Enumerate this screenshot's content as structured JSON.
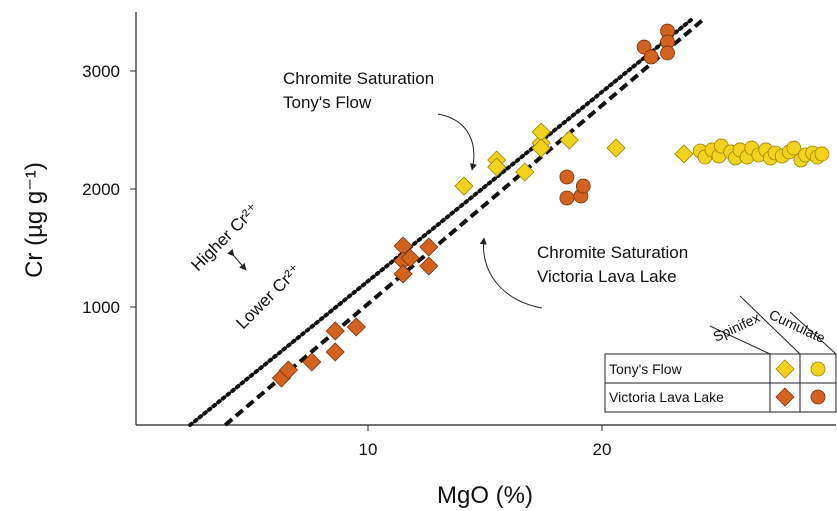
{
  "chart_data": {
    "type": "scatter",
    "xlabel": "MgO (%)",
    "ylabel": "Cr (µg g⁻¹)",
    "xlim": [
      0,
      30
    ],
    "ylim": [
      0,
      3500
    ],
    "xticks": [
      10,
      20
    ],
    "yticks": [
      1000,
      2000,
      3000
    ],
    "groups": [
      {
        "name": "Tony's Flow",
        "color": "#f2d21c",
        "stroke": "#9c8500",
        "series": [
          {
            "name": "Spinifex",
            "marker": "diamond",
            "x": [
              14.1,
              15.5,
              15.5,
              16.7,
              17.4,
              17.4,
              17.4,
              18.6,
              20.6,
              23.5
            ],
            "y": [
              2025,
              2246,
              2186,
              2144,
              2390,
              2483,
              2347,
              2415,
              2347,
              2297
            ]
          },
          {
            "name": "Cumulate",
            "marker": "circle",
            "x": [
              24.2,
              24.4,
              24.7,
              25.0,
              25.1,
              25.5,
              25.7,
              25.9,
              26.2,
              26.4,
              26.7,
              27.0,
              27.2,
              27.4,
              27.7,
              28.0,
              28.2,
              28.5,
              28.7,
              29.0,
              29.2,
              29.4
            ],
            "y": [
              2322,
              2271,
              2331,
              2280,
              2364,
              2314,
              2263,
              2331,
              2271,
              2347,
              2288,
              2331,
              2263,
              2305,
              2280,
              2314,
              2347,
              2246,
              2288,
              2305,
              2271,
              2297
            ]
          }
        ]
      },
      {
        "name": "Victoria Lava Lake",
        "color": "#d4621f",
        "stroke": "#7e3310",
        "series": [
          {
            "name": "Spinifex",
            "marker": "diamond",
            "x": [
              6.3,
              6.6,
              7.6,
              8.6,
              8.6,
              9.5,
              11.5,
              11.5,
              11.5,
              11.8,
              12.6,
              12.6
            ],
            "y": [
              398,
              466,
              534,
              619,
              797,
              831,
              1517,
              1390,
              1280,
              1415,
              1508,
              1347
            ]
          },
          {
            "name": "Cumulate",
            "marker": "circle",
            "x": [
              18.5,
              18.5,
              19.1,
              19.2,
              21.8,
              22.1,
              22.8,
              22.8,
              22.8
            ],
            "y": [
              2102,
              1924,
              1941,
              2025,
              3203,
              3119,
              3339,
              3246,
              3153
            ]
          }
        ]
      }
    ],
    "lines": [
      {
        "style": "dotted",
        "x": [
          2.4,
          23.8
        ],
        "y": [
          0,
          3432
        ]
      },
      {
        "style": "dashed",
        "x": [
          3.9,
          24.4
        ],
        "y": [
          0,
          3449
        ]
      }
    ],
    "annotations": [
      {
        "lines": [
          "Chromite Saturation",
          "Tony's Flow"
        ]
      },
      {
        "lines": [
          "Chromite Saturation",
          "Victoria Lava Lake"
        ]
      },
      {
        "lines": [
          "Higher Cr²⁺"
        ]
      },
      {
        "lines": [
          "Lower Cr²⁺"
        ]
      }
    ]
  }
}
